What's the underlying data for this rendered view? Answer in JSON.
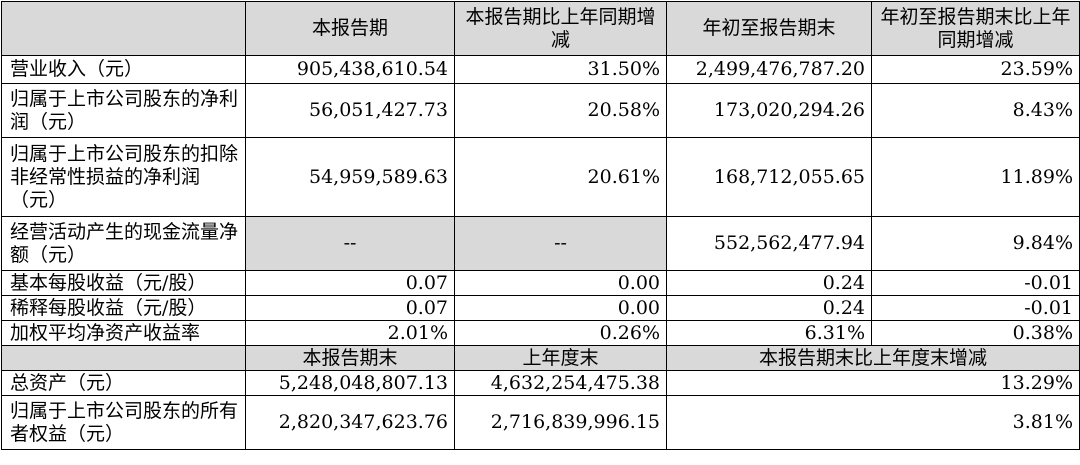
{
  "header": {
    "col1": "本报告期",
    "col2": "本报告期比上年同期增减",
    "col3": "年初至报告期末",
    "col4": "年初至报告期末比上年同期增减"
  },
  "rows": [
    {
      "label": "营业收入（元）",
      "v1": "905,438,610.54",
      "v2": "31.50%",
      "v3": "2,499,476,787.20",
      "v4": "23.59%"
    },
    {
      "label": "归属于上市公司股东的净利润（元）",
      "v1": "56,051,427.73",
      "v2": "20.58%",
      "v3": "173,020,294.26",
      "v4": "8.43%"
    },
    {
      "label": "归属于上市公司股东的扣除非经常性损益的净利润（元）",
      "v1": "54,959,589.63",
      "v2": "20.61%",
      "v3": "168,712,055.65",
      "v4": "11.89%"
    },
    {
      "label": "经营活动产生的现金流量净额（元）",
      "v1": "--",
      "v2": "--",
      "v3": "552,562,477.94",
      "v4": "9.84%"
    },
    {
      "label": "基本每股收益（元/股）",
      "v1": "0.07",
      "v2": "0.00",
      "v3": "0.24",
      "v4": "-0.01"
    },
    {
      "label": "稀释每股收益（元/股）",
      "v1": "0.07",
      "v2": "0.00",
      "v3": "0.24",
      "v4": "-0.01"
    },
    {
      "label": "加权平均净资产收益率",
      "v1": "2.01%",
      "v2": "0.26%",
      "v3": "6.31%",
      "v4": "0.38%"
    }
  ],
  "header2": {
    "col1": "本报告期末",
    "col2": "上年度末",
    "col3": "本报告期末比上年度末增减"
  },
  "rows2": [
    {
      "label": "总资产（元）",
      "v1": "5,248,048,807.13",
      "v2": "4,632,254,475.38",
      "v3": "13.29%"
    },
    {
      "label": "归属于上市公司股东的所有者权益（元）",
      "v1": "2,820,347,623.76",
      "v2": "2,716,839,996.15",
      "v3": "3.81%"
    }
  ]
}
